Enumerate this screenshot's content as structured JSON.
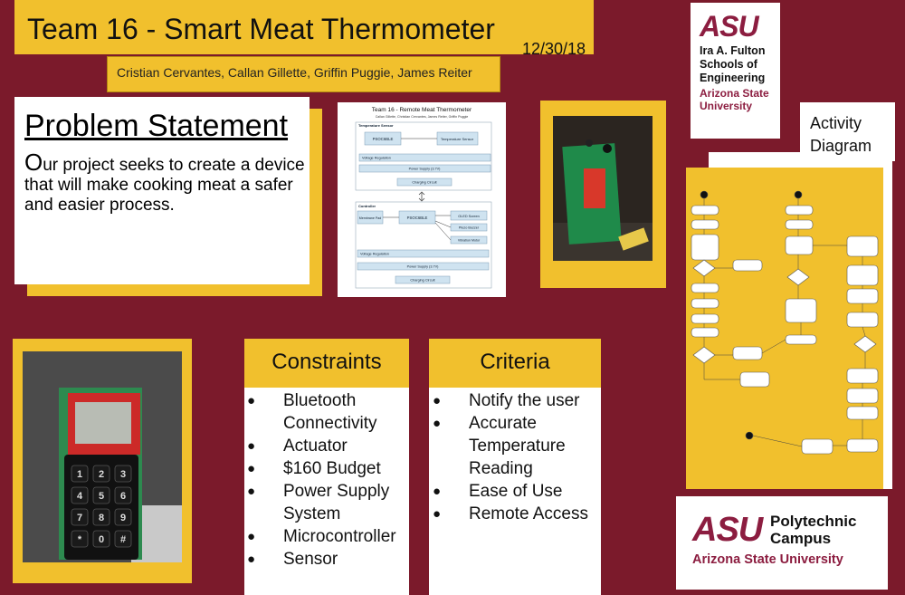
{
  "header": {
    "title": "Team 16 - Smart Meat Thermometer",
    "date": "12/30/18",
    "authors": "Cristian Cervantes, Callan Gillette, Griffin Puggie, James Reiter"
  },
  "problem_statement": {
    "heading": "Problem Statement",
    "first_letter": "O",
    "body": "ur project seeks to create a device that will make cooking meat a safer and easier process."
  },
  "block_diagram": {
    "title": "Team 16 - Remote Meat Thermometer",
    "subtitle": "Callan Gillette, Christian Cervantes, James Reiter, Griffin Puggie",
    "sensor_label": "Temperature Sensor",
    "psoc": "PSOC6BLE",
    "temp_sensor": "Temperature Sensor",
    "voltage_reg": "Voltage Regulation",
    "power_supply": "Power Supply (3.7V)",
    "charging": "Charging Circuit",
    "controller_label": "Controller",
    "membrane": "Membrane Pad",
    "oled": "OLED Screen",
    "piezo": "Piezo Buzzer",
    "vibration": "Vibration Motor"
  },
  "activity": {
    "label_line1": "Activity",
    "label_line2": "Diagram"
  },
  "constraints": {
    "title": "Constraints",
    "items": [
      "Bluetooth Connectivity",
      "Actuator",
      "$160 Budget",
      "Power Supply System",
      "Microcontroller",
      "Sensor"
    ]
  },
  "criteria": {
    "title": "Criteria",
    "items": [
      "Notify the user",
      "Accurate Temperature Reading",
      "Ease of Use",
      "Remote Access"
    ]
  },
  "logo_top": {
    "mark": "ASU",
    "line1": "Ira A. Fulton",
    "line2": "Schools of",
    "line3": "Engineering",
    "line4": "Arizona State",
    "line5": "University"
  },
  "logo_bottom": {
    "mark": "ASU",
    "line1": "Polytechnic",
    "line2": "Campus",
    "line3": "Arizona State University"
  },
  "colors": {
    "maroon": "#7b1a2b",
    "gold": "#f1c02d",
    "asu_maroon": "#8c1d40"
  }
}
